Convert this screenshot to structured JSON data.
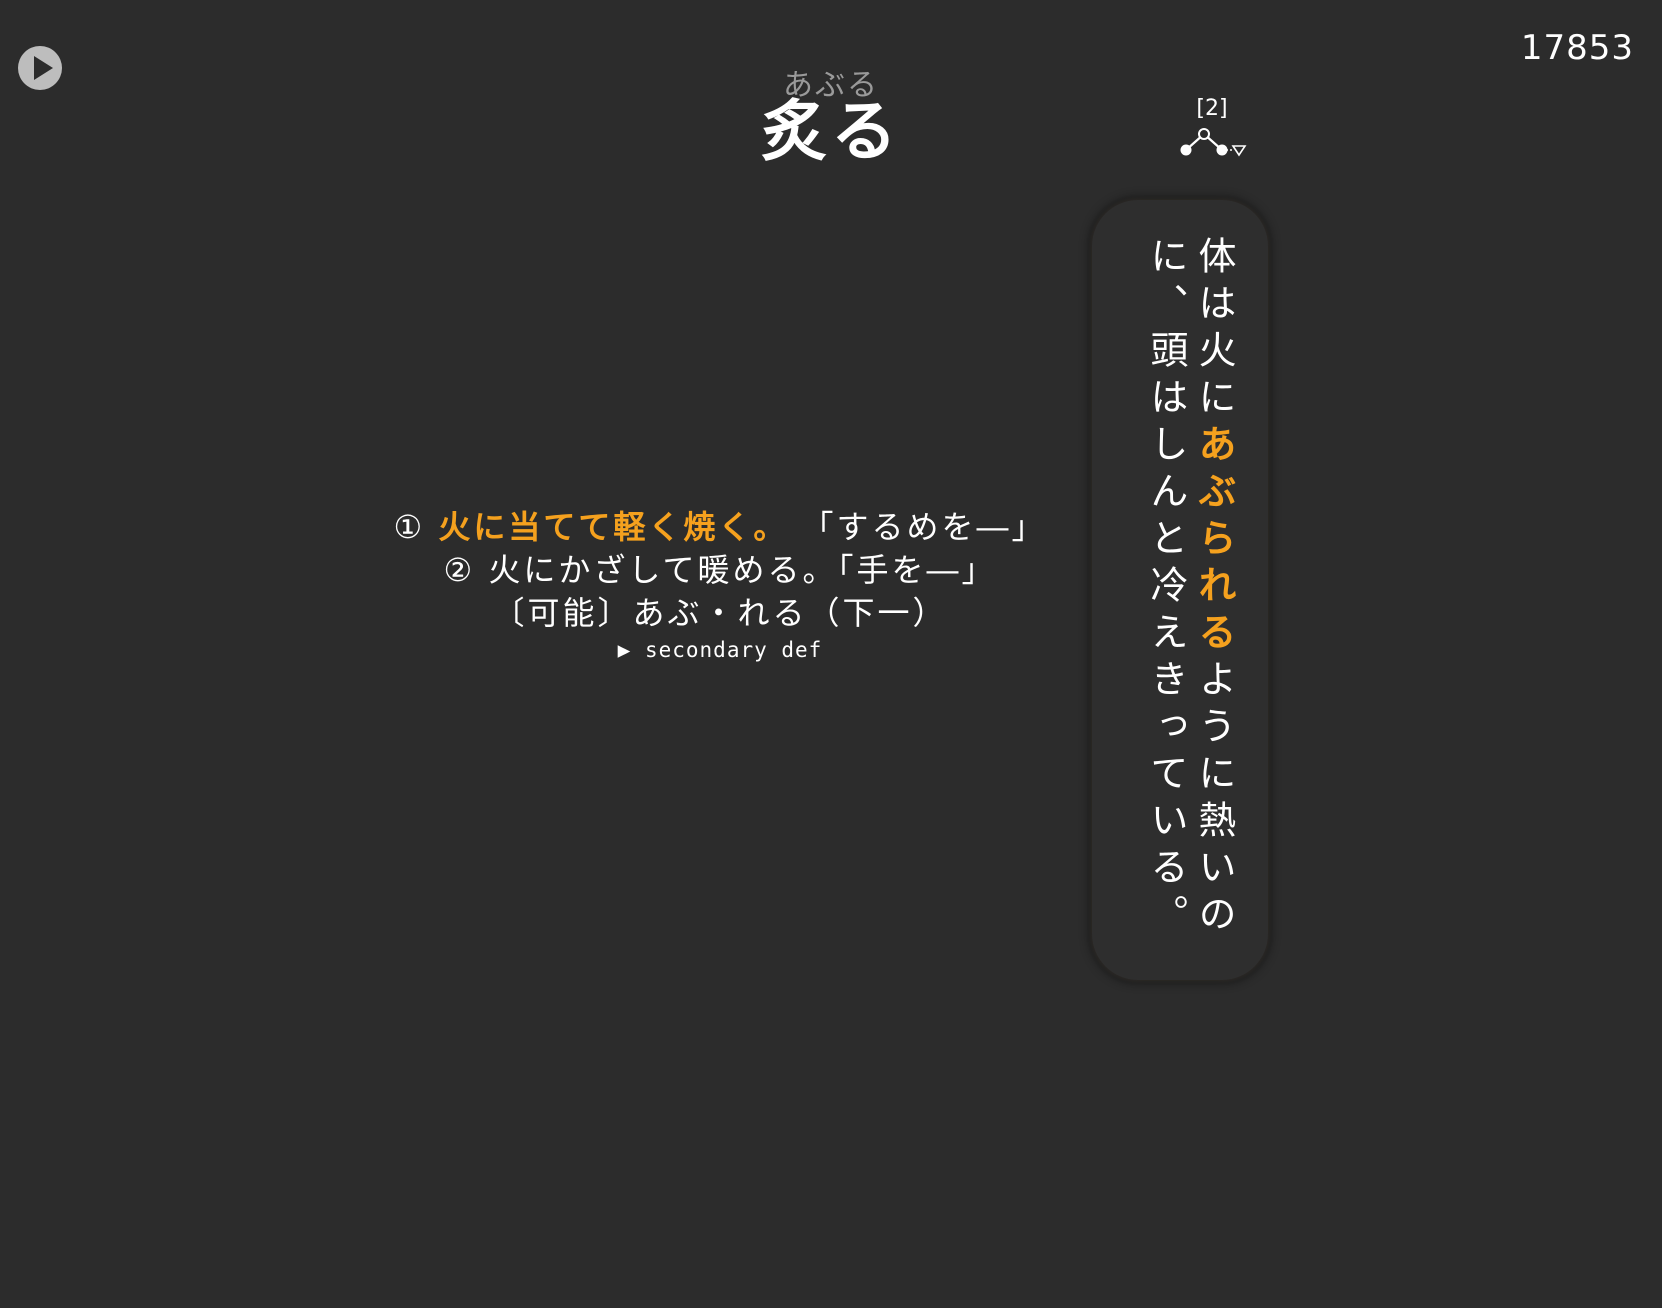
{
  "card": {
    "id": "17853"
  },
  "word": {
    "reading": "あぶる",
    "headword": "炙る"
  },
  "accent": {
    "number": "[2]"
  },
  "definitions": {
    "line1_number": "①",
    "line1_highlight": "火に当てて軽く焼く。",
    "line1_example": "「するめを―」",
    "line2_number": "②",
    "line2_text": "火にかざして暖める。「手を―」",
    "line3_text": "〔可能〕あぶ・れる（下一）",
    "secondary_toggle": "▶ secondary def"
  },
  "sentence": {
    "before": "体は火に",
    "highlight": "あぶられる",
    "after": "ように熱いのに、頭はしんと冷えきっている。"
  },
  "colors": {
    "background": "#2c2c2c",
    "highlight": "#f5a11e",
    "reading": "#9a9a9a",
    "play_button": "#bdbdbd"
  }
}
